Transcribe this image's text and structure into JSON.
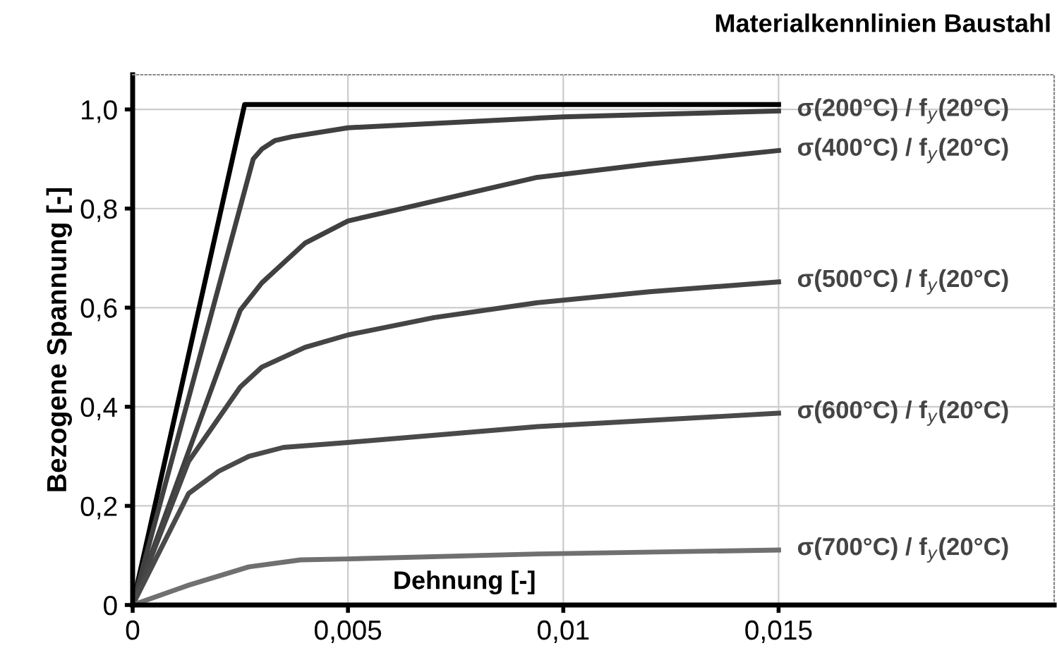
{
  "chart_data": {
    "type": "line",
    "title": "Materialkennlinien Baustahl",
    "xlabel": "Dehnung [-]",
    "ylabel": "Bezogene Spannung [-]",
    "xlim": [
      0,
      0.0214
    ],
    "ylim": [
      0,
      1.07
    ],
    "xticks": [
      0,
      {
        "value": 0.005,
        "label": "0,005"
      },
      {
        "value": 0.01,
        "label": "0,01"
      },
      {
        "value": 0.015,
        "label": "0,015"
      }
    ],
    "yticks": [
      0,
      {
        "value": 0.2,
        "label": "0,2"
      },
      {
        "value": 0.4,
        "label": "0,4"
      },
      {
        "value": 0.6,
        "label": "0,6"
      },
      {
        "value": 0.8,
        "label": "0,8"
      },
      {
        "value": 1.0,
        "label": "1,0"
      }
    ],
    "grid": true,
    "legend": false,
    "marker": "none",
    "line_style": "solid",
    "series": [
      {
        "color": "#000000",
        "x": [
          0,
          0.0026,
          0.015
        ],
        "values": [
          0,
          1.01,
          1.01
        ]
      },
      {
        "name": "σ(200°C) / f$_{y}$(20°C)",
        "color": "#404040",
        "x": [
          0,
          0.0028,
          0.003,
          0.0033,
          0.0037,
          0.005,
          0.01,
          0.015
        ],
        "values": [
          0,
          0.9,
          0.92,
          0.937,
          0.945,
          0.963,
          0.985,
          0.997
        ]
      },
      {
        "name": "σ(400°C) / f$_{y}$(20°C)",
        "color": "#404040",
        "x": [
          0,
          0.0013,
          0.0025,
          0.003,
          0.0035,
          0.004,
          0.005,
          0.006,
          0.008,
          0.0094,
          0.012,
          0.015
        ],
        "values": [
          0,
          0.31,
          0.595,
          0.65,
          0.69,
          0.73,
          0.775,
          0.795,
          0.835,
          0.863,
          0.89,
          0.917
        ]
      },
      {
        "name": "σ(500°C) / f$_{y}$(20°C)",
        "color": "#454545",
        "x": [
          0,
          0.0013,
          0.0025,
          0.003,
          0.0035,
          0.004,
          0.005,
          0.007,
          0.0094,
          0.012,
          0.015
        ],
        "values": [
          0,
          0.29,
          0.44,
          0.48,
          0.5,
          0.52,
          0.545,
          0.58,
          0.61,
          0.632,
          0.652
        ]
      },
      {
        "name": "σ(600°C) / f$_{y}$(20°C)",
        "color": "#4a4a4a",
        "x": [
          0,
          0.0013,
          0.002,
          0.0027,
          0.0035,
          0.005,
          0.0094,
          0.015
        ],
        "values": [
          0,
          0.225,
          0.27,
          0.3,
          0.318,
          0.328,
          0.36,
          0.387
        ]
      },
      {
        "name": "σ(700°C) / f$_{y}$(20°C)",
        "color": "#707070",
        "x": [
          0,
          0.0013,
          0.0027,
          0.0039,
          0.005,
          0.0094,
          0.015
        ],
        "values": [
          0,
          0.04,
          0.077,
          0.091,
          0.093,
          0.103,
          0.111
        ]
      }
    ]
  }
}
